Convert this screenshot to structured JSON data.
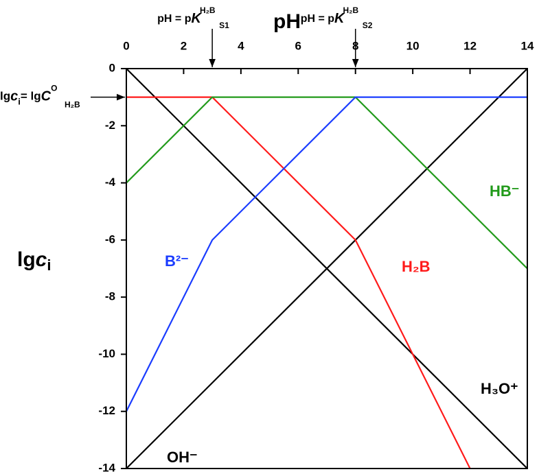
{
  "chart_data": {
    "type": "line",
    "x_label": "pH",
    "y_label": {
      "prefix": "lg",
      "symbol": "c",
      "subscript": "i"
    },
    "xlim": [
      0,
      14
    ],
    "xticks": [
      0,
      2,
      4,
      6,
      8,
      10,
      12,
      14
    ],
    "ylim": [
      -14,
      0
    ],
    "yticks": [
      0,
      -2,
      -4,
      -6,
      -8,
      -10,
      -12,
      -14
    ],
    "series": [
      {
        "name": "H₃O⁺",
        "color": "#000000",
        "x": [
          0,
          14
        ],
        "values": [
          0,
          -14
        ]
      },
      {
        "name": "OH⁻",
        "color": "#000000",
        "x": [
          0,
          14
        ],
        "values": [
          -14,
          0
        ]
      },
      {
        "name": "H₂B",
        "color": "#ff1a1a",
        "x": [
          0,
          3,
          8,
          12
        ],
        "values": [
          -1,
          -1,
          -6,
          -14
        ]
      },
      {
        "name": "HB⁻",
        "color": "#219a1a",
        "x": [
          0,
          3,
          8,
          14
        ],
        "values": [
          -4,
          -1,
          -1,
          -7
        ]
      },
      {
        "name": "B²⁻",
        "color": "#1a3cff",
        "x": [
          0,
          3,
          8,
          14
        ],
        "values": [
          -12,
          -6,
          -1,
          -1
        ]
      }
    ],
    "annotations": [
      {
        "prefix": "pH = p",
        "symbol": "K",
        "subscript": "S1",
        "superscript": "H₂B",
        "x": 3
      },
      {
        "prefix": "pH = p",
        "symbol": "K",
        "subscript": "S2",
        "superscript": "H₂B",
        "x": 8
      }
    ],
    "level_annotation": {
      "prefix": "lg",
      "symbol": "c",
      "subscript": "i",
      "middle": "= lg",
      "symbol2": "C",
      "superscript": "O",
      "subscript2": "H₂B",
      "y": -1
    }
  }
}
